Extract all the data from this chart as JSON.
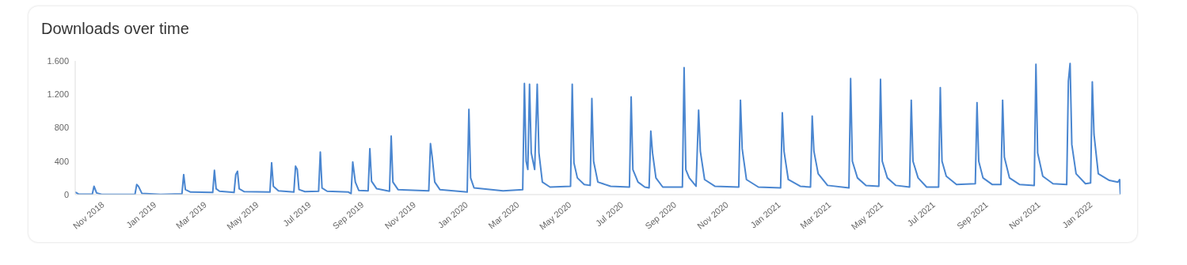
{
  "chart_data": {
    "type": "line",
    "title": "Downloads over time",
    "x": [
      "2018-10-02",
      "2018-10-06",
      "2018-10-22",
      "2018-10-24",
      "2018-10-27",
      "2018-11-02",
      "2018-12-11",
      "2018-12-13",
      "2018-12-15",
      "2018-12-19",
      "2019-01-10",
      "2019-02-04",
      "2019-02-06",
      "2019-02-08",
      "2019-02-14",
      "2019-03-12",
      "2019-03-14",
      "2019-03-16",
      "2019-03-20",
      "2019-04-06",
      "2019-04-08",
      "2019-04-10",
      "2019-04-12",
      "2019-04-18",
      "2019-05-18",
      "2019-05-20",
      "2019-05-22",
      "2019-05-28",
      "2019-06-15",
      "2019-06-17",
      "2019-06-19",
      "2019-06-21",
      "2019-06-28",
      "2019-07-14",
      "2019-07-16",
      "2019-07-18",
      "2019-07-24",
      "2019-08-18",
      "2019-08-21",
      "2019-08-23",
      "2019-08-26",
      "2019-08-30",
      "2019-09-10",
      "2019-09-12",
      "2019-09-14",
      "2019-09-20",
      "2019-10-05",
      "2019-10-07",
      "2019-10-09",
      "2019-10-15",
      "2019-11-20",
      "2019-11-22",
      "2019-11-24",
      "2019-11-27",
      "2019-12-03",
      "2020-01-04",
      "2020-01-06",
      "2020-01-08",
      "2020-01-12",
      "2020-02-15",
      "2020-03-09",
      "2020-03-11",
      "2020-03-13",
      "2020-03-15",
      "2020-03-17",
      "2020-03-19",
      "2020-03-23",
      "2020-03-26",
      "2020-03-28",
      "2020-04-01",
      "2020-04-10",
      "2020-05-04",
      "2020-05-06",
      "2020-05-08",
      "2020-05-12",
      "2020-05-20",
      "2020-05-27",
      "2020-05-29",
      "2020-05-31",
      "2020-06-05",
      "2020-06-20",
      "2020-07-12",
      "2020-07-14",
      "2020-07-16",
      "2020-07-22",
      "2020-07-30",
      "2020-08-04",
      "2020-08-06",
      "2020-08-08",
      "2020-08-12",
      "2020-08-20",
      "2020-09-12",
      "2020-09-14",
      "2020-09-16",
      "2020-09-20",
      "2020-09-28",
      "2020-10-01",
      "2020-10-03",
      "2020-10-08",
      "2020-10-20",
      "2020-11-17",
      "2020-11-19",
      "2020-11-21",
      "2020-11-26",
      "2020-12-10",
      "2021-01-05",
      "2021-01-07",
      "2021-01-09",
      "2021-01-14",
      "2021-01-28",
      "2021-02-09",
      "2021-02-11",
      "2021-02-13",
      "2021-02-18",
      "2021-03-01",
      "2021-03-26",
      "2021-03-28",
      "2021-03-30",
      "2021-04-05",
      "2021-04-15",
      "2021-04-30",
      "2021-05-02",
      "2021-05-04",
      "2021-05-10",
      "2021-05-20",
      "2021-06-05",
      "2021-06-07",
      "2021-06-09",
      "2021-06-15",
      "2021-06-25",
      "2021-07-09",
      "2021-07-11",
      "2021-07-13",
      "2021-07-18",
      "2021-07-30",
      "2021-08-21",
      "2021-08-23",
      "2021-08-25",
      "2021-08-30",
      "2021-09-10",
      "2021-09-20",
      "2021-09-22",
      "2021-09-24",
      "2021-09-30",
      "2021-10-12",
      "2021-10-29",
      "2021-10-31",
      "2021-11-02",
      "2021-11-08",
      "2021-11-20",
      "2021-12-06",
      "2021-12-08",
      "2021-12-10",
      "2021-12-12",
      "2021-12-17",
      "2021-12-28",
      "2022-01-03",
      "2022-01-05",
      "2022-01-07",
      "2022-01-12",
      "2022-01-25",
      "2022-02-04",
      "2022-02-06",
      "2022-02-07"
    ],
    "series": [
      {
        "color": "#4a86d0",
        "values": [
          30,
          5,
          5,
          100,
          20,
          3,
          5,
          120,
          100,
          15,
          3,
          10,
          240,
          60,
          30,
          25,
          290,
          70,
          40,
          25,
          240,
          280,
          70,
          35,
          30,
          380,
          100,
          45,
          30,
          340,
          300,
          60,
          35,
          40,
          510,
          80,
          40,
          30,
          10,
          390,
          150,
          50,
          45,
          550,
          160,
          70,
          40,
          700,
          150,
          60,
          45,
          610,
          450,
          150,
          60,
          30,
          1020,
          200,
          80,
          45,
          60,
          1330,
          400,
          300,
          1320,
          500,
          300,
          1320,
          500,
          150,
          90,
          100,
          1320,
          380,
          200,
          120,
          110,
          1150,
          400,
          150,
          100,
          90,
          1170,
          300,
          150,
          90,
          80,
          760,
          500,
          200,
          90,
          90,
          1520,
          300,
          200,
          100,
          1010,
          520,
          180,
          100,
          90,
          1130,
          550,
          180,
          90,
          80,
          980,
          520,
          180,
          100,
          90,
          940,
          520,
          250,
          110,
          80,
          1390,
          400,
          200,
          110,
          100,
          1380,
          400,
          200,
          110,
          90,
          1130,
          400,
          200,
          90,
          90,
          1280,
          400,
          220,
          120,
          130,
          1100,
          400,
          200,
          120,
          120,
          1130,
          450,
          200,
          120,
          110,
          1560,
          500,
          220,
          130,
          120,
          1360,
          1570,
          600,
          250,
          130,
          140,
          1350,
          720,
          250,
          170,
          150,
          180,
          0
        ]
      }
    ],
    "xlim": [
      "2018-10-02",
      "2022-02-07"
    ],
    "xticks": [
      {
        "value": "2018-11-01",
        "label": "Nov 2018"
      },
      {
        "value": "2019-01-01",
        "label": "Jan 2019"
      },
      {
        "value": "2019-03-01",
        "label": "Mar 2019"
      },
      {
        "value": "2019-05-01",
        "label": "May 2019"
      },
      {
        "value": "2019-07-01",
        "label": "Jul 2019"
      },
      {
        "value": "2019-09-01",
        "label": "Sep 2019"
      },
      {
        "value": "2019-11-01",
        "label": "Nov 2019"
      },
      {
        "value": "2020-01-01",
        "label": "Jan 2020"
      },
      {
        "value": "2020-03-01",
        "label": "Mar 2020"
      },
      {
        "value": "2020-05-01",
        "label": "May 2020"
      },
      {
        "value": "2020-07-01",
        "label": "Jul 2020"
      },
      {
        "value": "2020-09-01",
        "label": "Sep 2020"
      },
      {
        "value": "2020-11-01",
        "label": "Nov 2020"
      },
      {
        "value": "2021-01-01",
        "label": "Jan 2021"
      },
      {
        "value": "2021-03-01",
        "label": "Mar 2021"
      },
      {
        "value": "2021-05-01",
        "label": "May 2021"
      },
      {
        "value": "2021-07-01",
        "label": "Jul 2021"
      },
      {
        "value": "2021-09-01",
        "label": "Sep 2021"
      },
      {
        "value": "2021-11-01",
        "label": "Nov 2021"
      },
      {
        "value": "2022-01-01",
        "label": "Jan 2022"
      }
    ],
    "ylim": [
      0,
      1600
    ],
    "yticks": [
      0,
      {
        "value": 400,
        "label": "400"
      },
      {
        "value": 800,
        "label": "800"
      },
      {
        "value": 1200,
        "label": "1.200"
      },
      {
        "value": 1600,
        "label": "1.600"
      }
    ],
    "marker": "none",
    "line_style": "solid",
    "grid": false,
    "legend": false
  }
}
